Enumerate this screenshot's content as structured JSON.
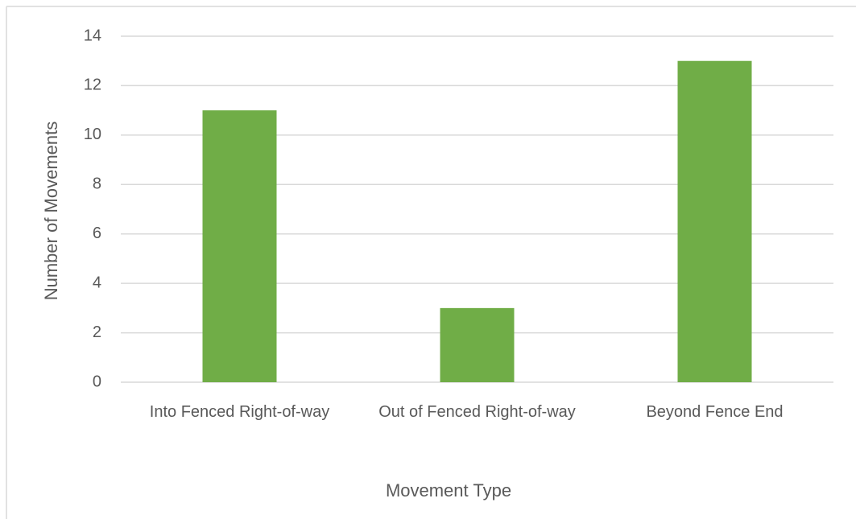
{
  "chart_data": {
    "type": "bar",
    "x_label": "Movement Type",
    "y_label": "Number of Movements",
    "categories": [
      "Into Fenced Right-of-way",
      "Out of Fenced Right-of-way",
      "Beyond Fence End"
    ],
    "values": [
      11,
      3,
      13
    ],
    "color": "#70ad47",
    "ylim": [
      0,
      14
    ],
    "yticks": [
      0,
      2,
      4,
      6,
      8,
      10,
      12,
      14
    ],
    "grid": true
  }
}
